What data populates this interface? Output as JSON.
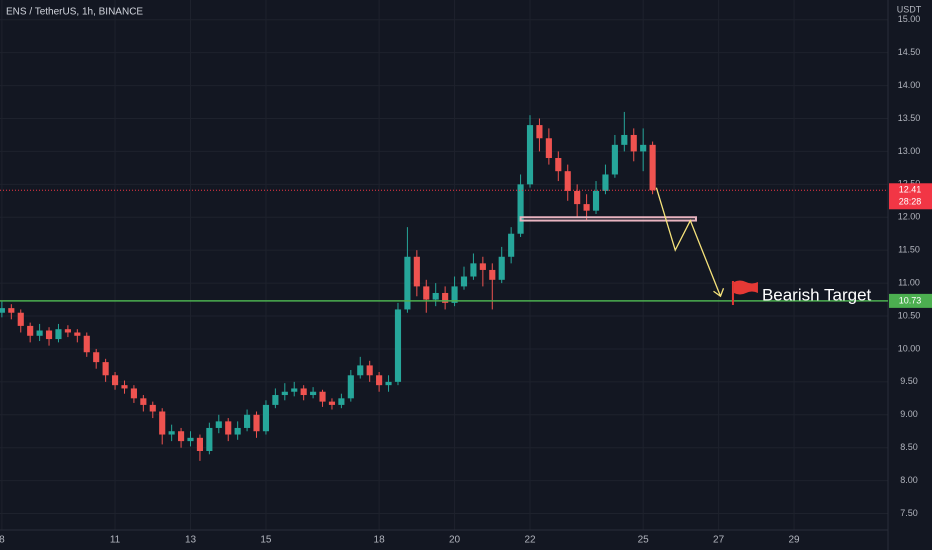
{
  "chart_data": {
    "type": "candlestick",
    "title": "ENS / TetherUS, 1h, BINANCE",
    "currency": "USDT",
    "x": [
      8,
      8.25,
      8.5,
      8.75,
      9,
      9.25,
      9.5,
      9.75,
      10,
      10.25,
      10.5,
      10.75,
      11,
      11.25,
      11.5,
      11.75,
      12,
      12.25,
      12.5,
      12.75,
      13,
      13.25,
      13.5,
      13.75,
      14,
      14.25,
      14.5,
      14.75,
      15,
      15.25,
      15.5,
      15.75,
      16,
      16.25,
      16.5,
      16.75,
      17,
      17.25,
      17.5,
      17.75,
      18,
      18.25,
      18.5,
      18.75,
      19,
      19.25,
      19.5,
      19.75,
      20,
      20.25,
      20.5,
      20.75,
      21,
      21.25,
      21.5,
      21.75,
      22,
      22.25,
      22.5,
      22.75,
      23,
      23.25,
      23.5,
      23.75,
      24,
      24.25,
      24.5,
      24.75,
      25,
      25.25
    ],
    "open": [
      10.55,
      10.62,
      10.55,
      10.35,
      10.2,
      10.28,
      10.15,
      10.3,
      10.25,
      10.2,
      9.95,
      9.8,
      9.6,
      9.45,
      9.4,
      9.25,
      9.15,
      9.05,
      8.7,
      8.75,
      8.6,
      8.65,
      8.45,
      8.8,
      8.9,
      8.7,
      8.8,
      9,
      8.75,
      9.15,
      9.3,
      9.35,
      9.4,
      9.3,
      9.35,
      9.2,
      9.15,
      9.25,
      9.6,
      9.75,
      9.6,
      9.45,
      9.5,
      10.6,
      11.4,
      10.95,
      10.75,
      10.85,
      10.7,
      10.95,
      11.1,
      11.3,
      11.2,
      11.05,
      11.4,
      11.75,
      12.5,
      13.4,
      13.2,
      12.9,
      12.7,
      12.4,
      12.2,
      12.1,
      12.4,
      12.65,
      13.1,
      13.25,
      13,
      13.1
    ],
    "high": [
      10.72,
      10.68,
      10.6,
      10.4,
      10.38,
      10.33,
      10.38,
      10.36,
      10.3,
      10.25,
      10,
      9.85,
      9.65,
      9.52,
      9.45,
      9.3,
      9.2,
      9.1,
      8.85,
      8.8,
      8.75,
      8.7,
      8.88,
      9,
      8.95,
      8.9,
      9.08,
      9.05,
      9.22,
      9.4,
      9.48,
      9.5,
      9.45,
      9.42,
      9.38,
      9.25,
      9.32,
      9.68,
      9.88,
      9.82,
      9.65,
      9.6,
      10.7,
      11.85,
      11.5,
      11.05,
      11,
      10.95,
      11.1,
      11.25,
      11.45,
      11.4,
      11.3,
      11.55,
      11.85,
      12.65,
      13.55,
      13.5,
      13.35,
      13,
      12.8,
      12.5,
      12.35,
      12.55,
      12.8,
      13.25,
      13.6,
      13.35,
      13.35,
      13.15
    ],
    "low": [
      10.48,
      10.45,
      10.25,
      10.1,
      10.12,
      10.05,
      10.1,
      10.18,
      10.1,
      9.88,
      9.7,
      9.5,
      9.38,
      9.32,
      9.18,
      9.05,
      8.95,
      8.55,
      8.6,
      8.5,
      8.52,
      8.3,
      8.4,
      8.72,
      8.6,
      8.62,
      8.75,
      8.65,
      8.7,
      9.1,
      9.22,
      9.28,
      9.22,
      9.25,
      9.12,
      9.08,
      9.1,
      9.2,
      9.55,
      9.5,
      9.35,
      9.35,
      9.45,
      10.55,
      10.8,
      10.55,
      10.65,
      10.6,
      10.65,
      10.9,
      11.05,
      10.95,
      10.6,
      11,
      11.3,
      11.7,
      12.45,
      13,
      12.8,
      12.55,
      12.25,
      12,
      11.95,
      12.05,
      12.35,
      12.6,
      13,
      12.85,
      12.7,
      12.35
    ],
    "close": [
      10.62,
      10.55,
      10.35,
      10.2,
      10.28,
      10.15,
      10.3,
      10.25,
      10.2,
      9.95,
      9.8,
      9.6,
      9.45,
      9.4,
      9.25,
      9.15,
      9.05,
      8.7,
      8.75,
      8.6,
      8.65,
      8.45,
      8.8,
      8.9,
      8.7,
      8.8,
      9,
      8.75,
      9.15,
      9.3,
      9.35,
      9.4,
      9.3,
      9.35,
      9.2,
      9.15,
      9.25,
      9.6,
      9.75,
      9.6,
      9.45,
      9.5,
      10.6,
      11.4,
      10.95,
      10.75,
      10.85,
      10.7,
      10.95,
      11.1,
      11.3,
      11.2,
      11.05,
      11.4,
      11.75,
      12.5,
      13.4,
      13.2,
      12.9,
      12.7,
      12.4,
      12.2,
      12.1,
      12.4,
      12.65,
      13.1,
      13.25,
      13,
      13.1,
      12.41
    ],
    "up_color": "#26a69a",
    "down_color": "#ef5350",
    "xlim": [
      7.95,
      31.49
    ],
    "ylim": [
      7.25,
      15.3
    ],
    "xticks": [
      8,
      11,
      13,
      15,
      18,
      20,
      22,
      25,
      27,
      29
    ],
    "yticks": [
      {
        "value": 7.5,
        "label": "7.50"
      },
      {
        "value": 8,
        "label": "8.00"
      },
      {
        "value": 8.5,
        "label": "8.50"
      },
      {
        "value": 9,
        "label": "9.00"
      },
      {
        "value": 9.5,
        "label": "9.50"
      },
      {
        "value": 10,
        "label": "10.00"
      },
      {
        "value": 10.5,
        "label": "10.50"
      },
      {
        "value": 11,
        "label": "11.00"
      },
      {
        "value": 11.5,
        "label": "11.50"
      },
      {
        "value": 12,
        "label": "12.00"
      },
      {
        "value": 12.5,
        "label": "12.50"
      },
      {
        "value": 13,
        "label": "13.00"
      },
      {
        "value": 13.5,
        "label": "13.50"
      },
      {
        "value": 14,
        "label": "14.00"
      },
      {
        "value": 14.5,
        "label": "14.50"
      },
      {
        "value": 15,
        "label": "15.00"
      }
    ],
    "grid": true,
    "target_line": {
      "value": 10.73,
      "color": "#4caf50"
    },
    "price_line": {
      "value": 12.41,
      "color": "#f23645",
      "countdown": "28:28"
    },
    "zone": {
      "x": [
        21.75,
        26.4
      ],
      "y": [
        11.95,
        12.0
      ],
      "color": "#e8b4c0"
    },
    "projection": {
      "x": [
        25.35,
        25.85,
        26.25,
        27.05
      ],
      "y": [
        12.45,
        11.5,
        11.95,
        10.8
      ],
      "color": "#f5e27a"
    },
    "annotation": {
      "text": "Bearish Target",
      "x": 27.3,
      "y": 10.85
    }
  }
}
